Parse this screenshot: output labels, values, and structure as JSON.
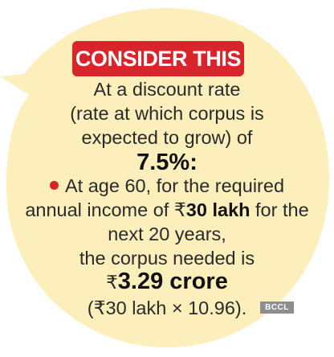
{
  "colors": {
    "bubble_fill": "#fcefbb",
    "badge": "#d8242a",
    "bullet": "#d8242a",
    "text": "#2a2a2a",
    "watermark_bg": "#8e8e8e"
  },
  "badge_label": "CONSIDER THIS",
  "lines": {
    "l1": "At a discount rate",
    "l2": "(rate at which corpus is",
    "l3": "expected to grow) of",
    "rate": "7.5%:",
    "l5": "At age 60, for the required",
    "l6_a": "annual income of ₹",
    "l6_b": "30 lakh",
    "l6_c": " for the",
    "l7": "next 20 years,",
    "l8": "the corpus needed is",
    "corpus_symbol": "₹",
    "corpus_value": "3.29 crore",
    "formula": "(₹30 lakh × 10.96)."
  },
  "watermark": "BCCL",
  "icons": {
    "bullet": "red-dot-icon"
  }
}
